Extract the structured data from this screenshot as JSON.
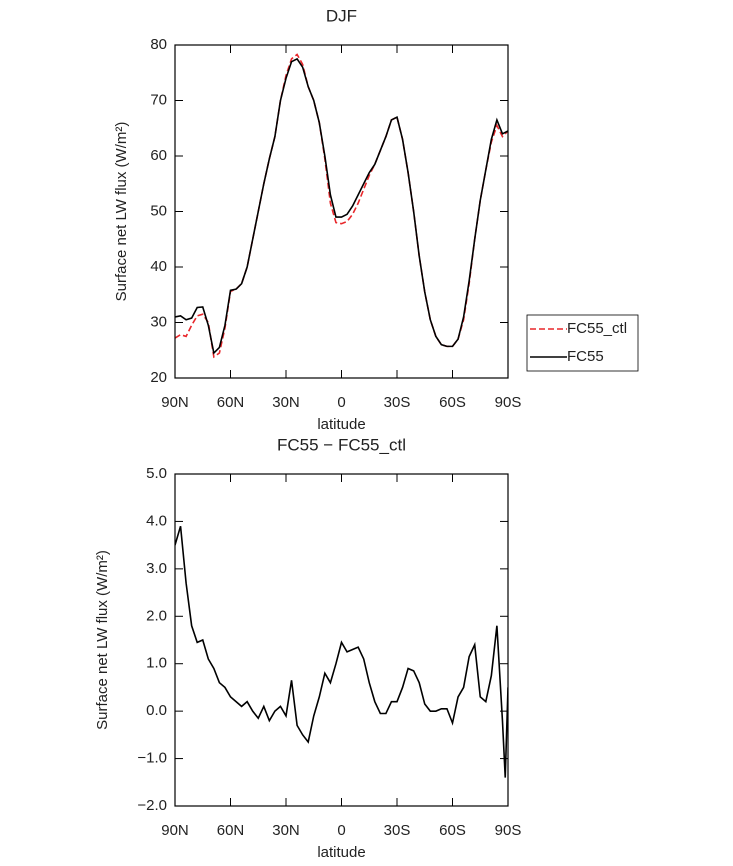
{
  "chart_data": [
    {
      "type": "line",
      "title": "DJF",
      "xlabel": "latitude",
      "ylabel": "Surface net LW flux (W/m²)",
      "x": [
        90,
        87,
        84,
        81,
        78,
        75,
        72,
        69,
        66,
        63,
        60,
        57,
        54,
        51,
        48,
        45,
        42,
        39,
        36,
        33,
        30,
        27,
        24,
        21,
        18,
        15,
        12,
        9,
        6,
        3,
        0,
        -3,
        -6,
        -9,
        -12,
        -15,
        -18,
        -21,
        -24,
        -27,
        -30,
        -33,
        -36,
        -39,
        -42,
        -45,
        -48,
        -51,
        -54,
        -57,
        -60,
        -63,
        -66,
        -69,
        -72,
        -75,
        -78,
        -81,
        -84,
        -87,
        -90
      ],
      "series": [
        {
          "name": "FC55_ctl",
          "color": "#e8262a",
          "dashed": true,
          "values": [
            27.2,
            27.8,
            27.5,
            29.5,
            31.2,
            31.5,
            30,
            23.8,
            24.5,
            29,
            35.6,
            36,
            37,
            40,
            45,
            50,
            55,
            59.5,
            63.5,
            70,
            74.5,
            77.5,
            78.3,
            76.5,
            72.5,
            70,
            66,
            59.5,
            51.5,
            48,
            47.8,
            48.2,
            49.5,
            51.5,
            54,
            56.5,
            58.5,
            61,
            63.5,
            66.5,
            67,
            63,
            57,
            50,
            42,
            35.5,
            30.5,
            27.5,
            26,
            25.7,
            25.7,
            27,
            30.5,
            37,
            45,
            52,
            57.5,
            62.5,
            65.5,
            63.5,
            64.5
          ]
        },
        {
          "name": "FC55",
          "color": "#000000",
          "dashed": false,
          "values": [
            31,
            31.2,
            30.5,
            30.8,
            32.7,
            32.8,
            29.5,
            24.5,
            25.5,
            29.5,
            35.8,
            36,
            37,
            40,
            45,
            50,
            55,
            59.5,
            63.5,
            70,
            74,
            77,
            77.5,
            76,
            72.5,
            70,
            66,
            60,
            53,
            49,
            49,
            49.5,
            51,
            53,
            55,
            57,
            58.5,
            61,
            63.5,
            66.5,
            67,
            63,
            57,
            50,
            42,
            35.5,
            30.5,
            27.5,
            26,
            25.7,
            25.7,
            27,
            31,
            37.5,
            45,
            52,
            57.5,
            63,
            66.5,
            64,
            64.5
          ]
        }
      ],
      "xlim": [
        90,
        -90
      ],
      "xticks": [
        {
          "value": 90,
          "label": "90N"
        },
        {
          "value": 60,
          "label": "60N"
        },
        {
          "value": 30,
          "label": "30N"
        },
        0,
        {
          "value": -30,
          "label": "30S"
        },
        {
          "value": -60,
          "label": "60S"
        },
        {
          "value": -90,
          "label": "90S"
        }
      ],
      "ylim": [
        20,
        80
      ],
      "yticks": [
        20,
        30,
        40,
        50,
        60,
        70,
        80
      ],
      "legend": "right"
    },
    {
      "type": "line",
      "title": "FC55 − FC55_ctl",
      "xlabel": "latitude",
      "ylabel": "Surface net LW flux (W/m²)",
      "x": [
        90,
        87,
        84,
        81,
        78,
        75,
        72,
        69,
        66,
        63,
        60,
        57,
        54,
        51,
        48,
        45,
        42,
        39,
        36,
        33,
        30,
        27,
        24,
        21,
        18,
        15,
        12,
        9,
        6,
        3,
        0,
        -3,
        -6,
        -9,
        -12,
        -15,
        -18,
        -21,
        -24,
        -27,
        -30,
        -33,
        -36,
        -39,
        -42,
        -45,
        -48,
        -51,
        -54,
        -57,
        -60,
        -63,
        -66,
        -69,
        -72,
        -75,
        -78,
        -81,
        -84,
        -87,
        -88.5,
        -90
      ],
      "series": [
        {
          "color": "#000000",
          "dashed": false,
          "values": [
            3.5,
            3.9,
            2.7,
            1.8,
            1.45,
            1.5,
            1.1,
            0.9,
            0.6,
            0.5,
            0.3,
            0.2,
            0.1,
            0.2,
            0,
            -0.15,
            0.1,
            -0.2,
            0,
            0.1,
            -0.1,
            0.65,
            -0.3,
            -0.5,
            -0.65,
            -0.1,
            0.3,
            0.8,
            0.6,
            1,
            1.45,
            1.25,
            1.3,
            1.35,
            1.1,
            0.6,
            0.2,
            -0.05,
            -0.05,
            0.2,
            0.2,
            0.5,
            0.9,
            0.85,
            0.6,
            0.15,
            0,
            0,
            0.05,
            0.05,
            -0.25,
            0.3,
            0.5,
            1.15,
            1.4,
            0.3,
            0.2,
            0.75,
            1.8,
            -0.2,
            -1.4,
            0.5
          ]
        }
      ],
      "xlim": [
        90,
        -90
      ],
      "xticks": [
        {
          "value": 90,
          "label": "90N"
        },
        {
          "value": 60,
          "label": "60N"
        },
        {
          "value": 30,
          "label": "30N"
        },
        0,
        {
          "value": -30,
          "label": "30S"
        },
        {
          "value": -60,
          "label": "60S"
        },
        {
          "value": -90,
          "label": "90S"
        }
      ],
      "ylim": [
        -2,
        5
      ],
      "yticks": [
        {
          "value": -2,
          "label": "−2.0"
        },
        {
          "value": -1,
          "label": "−1.0"
        },
        {
          "value": 0,
          "label": "0.0"
        },
        {
          "value": 1,
          "label": "1.0"
        },
        {
          "value": 2,
          "label": "2.0"
        },
        {
          "value": 3,
          "label": "3.0"
        },
        {
          "value": 4,
          "label": "4.0"
        },
        {
          "value": 5,
          "label": "5.0"
        }
      ]
    }
  ]
}
